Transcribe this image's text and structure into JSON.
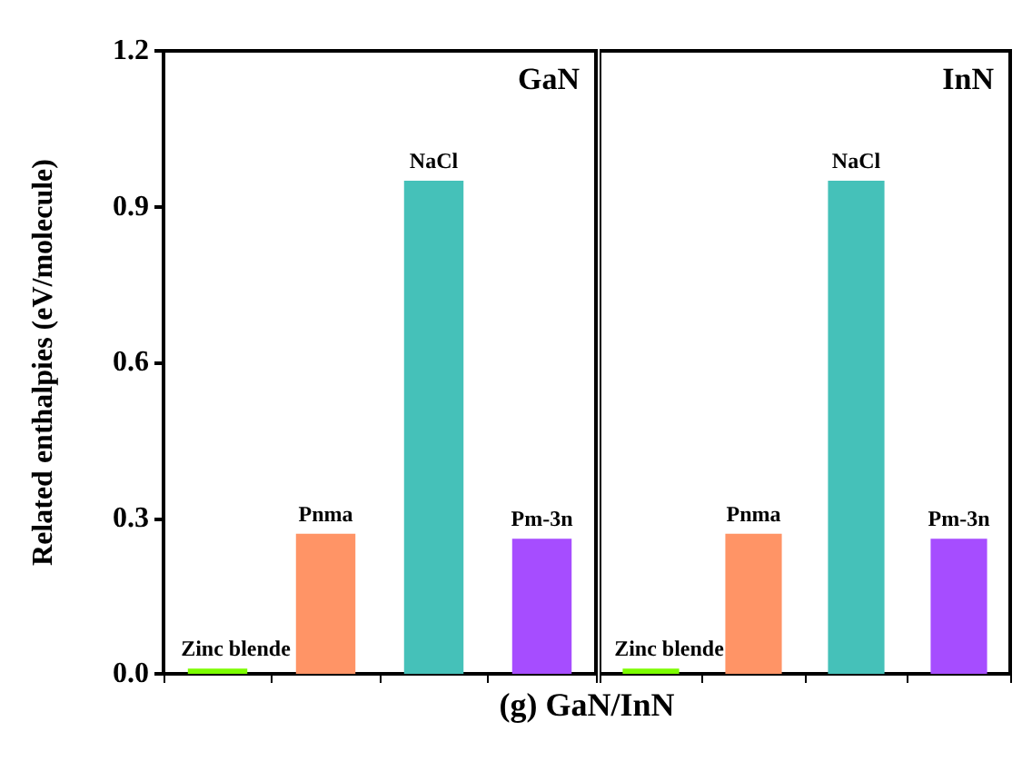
{
  "chart_data": [
    {
      "type": "bar",
      "title": "GaN",
      "ylabel": "Related enthalpies (eV/molecule)",
      "annotations": [
        "(g) GaN/InN"
      ],
      "categories": [
        "Zinc blende",
        "Pnma",
        "NaCl",
        "Pm-3n"
      ],
      "values": [
        0.01,
        0.27,
        0.95,
        0.26
      ],
      "colors": [
        "#7cfc00",
        "#ff9466",
        "#45c1b9",
        "#a64dff"
      ],
      "ylim": [
        0,
        1.2
      ],
      "yticks": [
        {
          "value": 0,
          "label": "0.0"
        },
        {
          "value": 0.3,
          "label": "0.3"
        },
        {
          "value": 0.6,
          "label": "0.6"
        },
        {
          "value": 0.9,
          "label": "0.9"
        },
        {
          "value": 1.2,
          "label": "1.2"
        }
      ],
      "grid": false
    },
    {
      "type": "bar",
      "title": "InN",
      "categories": [
        "Zinc blende",
        "Pnma",
        "NaCl",
        "Pm-3n"
      ],
      "values": [
        0.01,
        0.27,
        0.95,
        0.26
      ],
      "colors": [
        "#7cfc00",
        "#ff9466",
        "#45c1b9",
        "#a64dff"
      ],
      "ylim": [
        0,
        1.2
      ],
      "grid": false,
      "tick_labels": false
    }
  ]
}
